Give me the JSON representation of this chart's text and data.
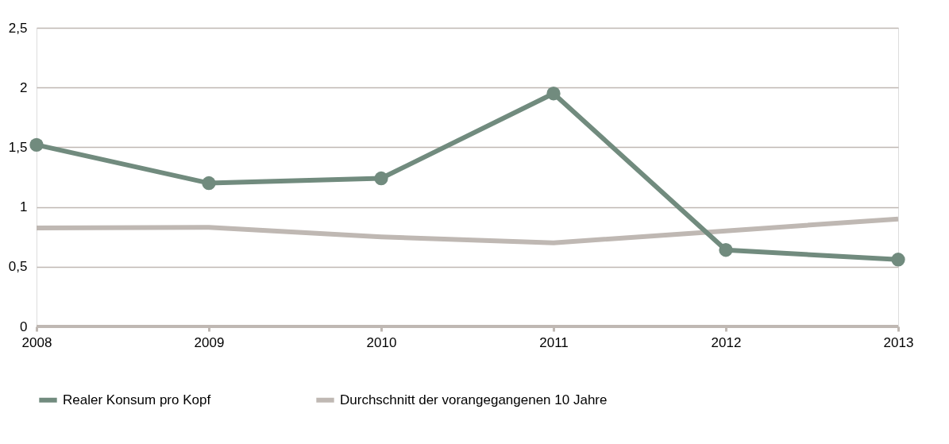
{
  "chart_data": {
    "type": "line",
    "categories": [
      "2008",
      "2009",
      "2010",
      "2011",
      "2012",
      "2013"
    ],
    "series": [
      {
        "name": "Realer Konsum pro Kopf",
        "color": "#718b7e",
        "marker": "circle",
        "values": [
          1.52,
          1.2,
          1.24,
          1.95,
          0.64,
          0.56
        ]
      },
      {
        "name": "Durchschnitt der vorangegangenen 10 Jahre",
        "color": "#bfb8b3",
        "marker": "none",
        "values": [
          0.825,
          0.83,
          0.75,
          0.7,
          0.8,
          0.9
        ]
      }
    ],
    "ylim": [
      0,
      2.5
    ],
    "yticks": [
      {
        "value": 0,
        "label": "0"
      },
      {
        "value": 0.5,
        "label": "0,5"
      },
      {
        "value": 1,
        "label": "1"
      },
      {
        "value": 1.5,
        "label": "1,5"
      },
      {
        "value": 2,
        "label": "2"
      },
      {
        "value": 2.5,
        "label": "2,5"
      }
    ],
    "grid": "y",
    "legend": "bottom",
    "line_style": "solid"
  }
}
